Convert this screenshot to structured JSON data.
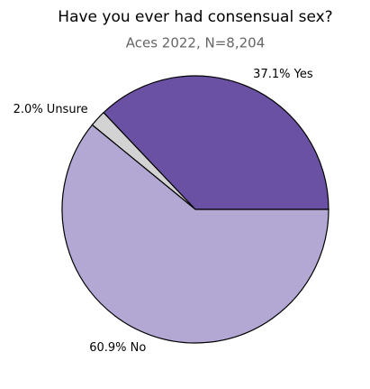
{
  "chart_data": {
    "type": "pie",
    "title": "Have you ever had consensual sex?",
    "subtitle": "Aces 2022, N=8,204",
    "values": [
      37.1,
      2.0,
      60.9
    ],
    "value_labels": [
      "37.1% Yes",
      "2.0% Unsure",
      "60.9% No"
    ],
    "colors": [
      "#6a51a3",
      "#d3d3d3",
      "#b2a8d3"
    ]
  }
}
